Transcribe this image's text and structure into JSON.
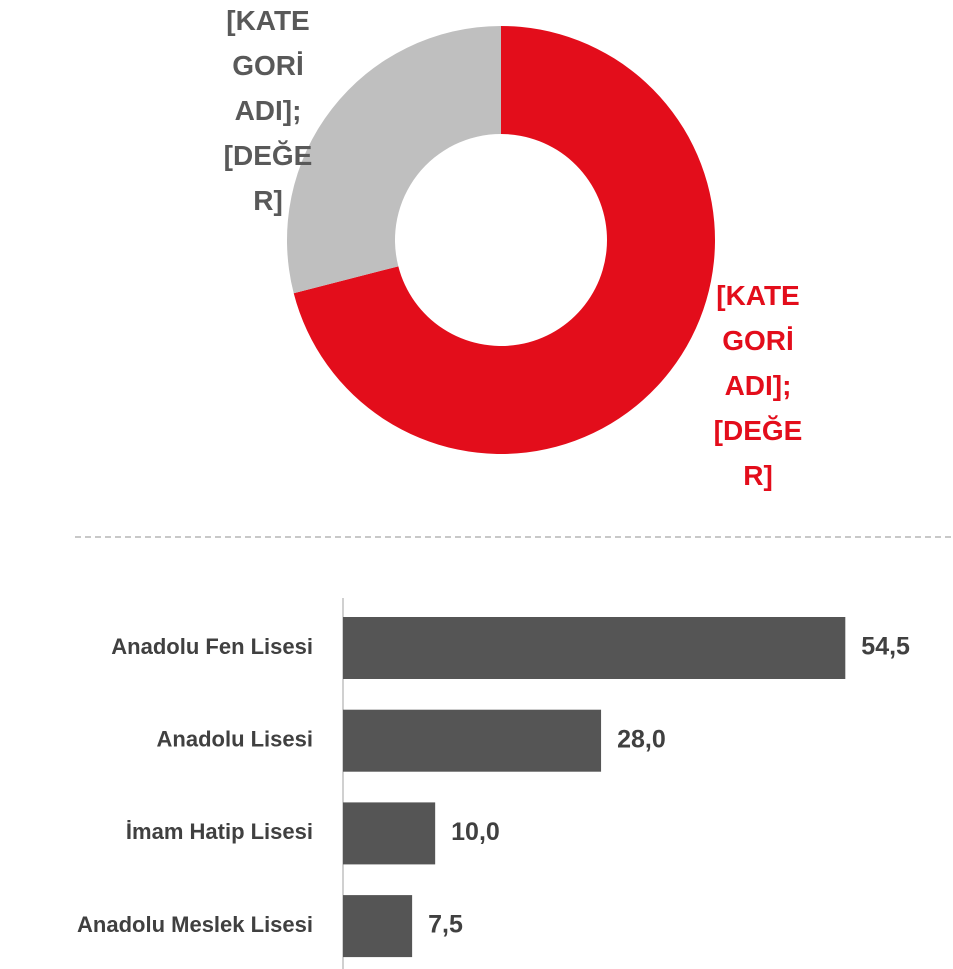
{
  "chart_data": [
    {
      "type": "donut",
      "labels": [
        "[KATEGORİ ADI]; [DEĞER]",
        "[KATEGORİ ADI]; [DEĞER]"
      ],
      "values": [
        71,
        29
      ],
      "colors": [
        "#e30d1b",
        "#bfbfbf"
      ],
      "label_colors": [
        "#e30d1b",
        "#595959"
      ]
    },
    {
      "type": "bar",
      "orientation": "horizontal",
      "categories": [
        "Anadolu Fen Lisesi",
        "Anadolu Lisesi",
        "İmam Hatip Lisesi",
        "Anadolu Meslek Lisesi"
      ],
      "values": [
        54.5,
        28.0,
        10.0,
        7.5
      ],
      "value_labels": [
        "54,5",
        "28,0",
        "10,0",
        "7,5"
      ],
      "color": "#555555",
      "xlim": [
        0,
        60
      ]
    }
  ]
}
